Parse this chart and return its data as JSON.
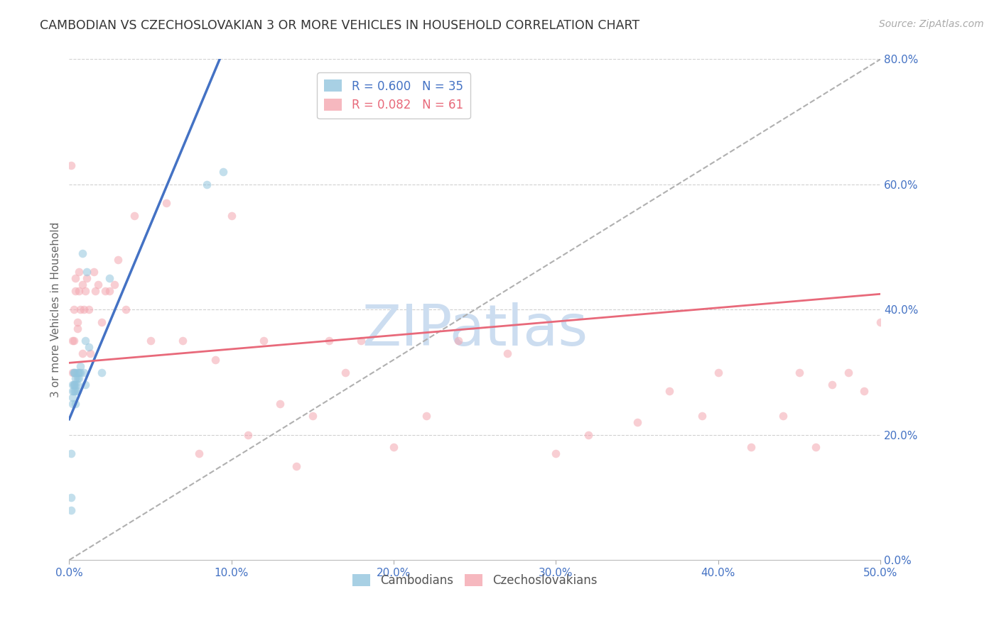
{
  "title": "CAMBODIAN VS CZECHOSLOVAKIAN 3 OR MORE VEHICLES IN HOUSEHOLD CORRELATION CHART",
  "source": "Source: ZipAtlas.com",
  "ylabel": "3 or more Vehicles in Household",
  "watermark": "ZIPatlas",
  "legend_r_entries": [
    {
      "label": "R = 0.600   N = 35",
      "color": "#6baed6"
    },
    {
      "label": "R = 0.082   N = 61",
      "color": "#e8697a"
    }
  ],
  "legend_bottom_labels": [
    "Cambodians",
    "Czechoslovakians"
  ],
  "xlim": [
    0.0,
    0.5
  ],
  "ylim": [
    0.0,
    0.8
  ],
  "right_yticks": [
    0.0,
    0.2,
    0.4,
    0.6,
    0.8
  ],
  "right_yticklabels": [
    "0.0%",
    "20.0%",
    "40.0%",
    "60.0%",
    "80.0%"
  ],
  "bottom_xticks": [
    0.0,
    0.1,
    0.2,
    0.3,
    0.4,
    0.5
  ],
  "bottom_xticklabels": [
    "0.0%",
    "10.0%",
    "20.0%",
    "30.0%",
    "40.0%",
    "50.0%"
  ],
  "cambodian_x": [
    0.001,
    0.001,
    0.001,
    0.002,
    0.002,
    0.002,
    0.002,
    0.003,
    0.003,
    0.003,
    0.003,
    0.003,
    0.004,
    0.004,
    0.004,
    0.004,
    0.004,
    0.005,
    0.005,
    0.005,
    0.005,
    0.006,
    0.006,
    0.007,
    0.007,
    0.008,
    0.009,
    0.01,
    0.01,
    0.011,
    0.012,
    0.02,
    0.025,
    0.085,
    0.095
  ],
  "cambodian_y": [
    0.08,
    0.1,
    0.17,
    0.25,
    0.26,
    0.27,
    0.28,
    0.27,
    0.28,
    0.28,
    0.3,
    0.3,
    0.25,
    0.27,
    0.28,
    0.29,
    0.3,
    0.27,
    0.28,
    0.29,
    0.3,
    0.29,
    0.3,
    0.3,
    0.31,
    0.49,
    0.3,
    0.28,
    0.35,
    0.46,
    0.34,
    0.3,
    0.45,
    0.6,
    0.62
  ],
  "czech_x": [
    0.001,
    0.002,
    0.002,
    0.003,
    0.003,
    0.004,
    0.004,
    0.005,
    0.005,
    0.006,
    0.006,
    0.007,
    0.008,
    0.008,
    0.009,
    0.01,
    0.011,
    0.012,
    0.013,
    0.015,
    0.016,
    0.018,
    0.02,
    0.022,
    0.025,
    0.028,
    0.03,
    0.035,
    0.04,
    0.05,
    0.06,
    0.07,
    0.08,
    0.09,
    0.1,
    0.11,
    0.12,
    0.13,
    0.15,
    0.16,
    0.17,
    0.18,
    0.2,
    0.22,
    0.24,
    0.27,
    0.3,
    0.32,
    0.35,
    0.37,
    0.39,
    0.4,
    0.42,
    0.44,
    0.45,
    0.46,
    0.47,
    0.48,
    0.49,
    0.5,
    0.14
  ],
  "czech_y": [
    0.63,
    0.3,
    0.35,
    0.35,
    0.4,
    0.43,
    0.45,
    0.37,
    0.38,
    0.43,
    0.46,
    0.4,
    0.33,
    0.44,
    0.4,
    0.43,
    0.45,
    0.4,
    0.33,
    0.46,
    0.43,
    0.44,
    0.38,
    0.43,
    0.43,
    0.44,
    0.48,
    0.4,
    0.55,
    0.35,
    0.57,
    0.35,
    0.17,
    0.32,
    0.55,
    0.2,
    0.35,
    0.25,
    0.23,
    0.35,
    0.3,
    0.35,
    0.18,
    0.23,
    0.35,
    0.33,
    0.17,
    0.2,
    0.22,
    0.27,
    0.23,
    0.3,
    0.18,
    0.23,
    0.3,
    0.18,
    0.28,
    0.3,
    0.27,
    0.38,
    0.15
  ],
  "blue_dot_color": "#92c5de",
  "pink_dot_color": "#f4a6b0",
  "blue_line_color": "#4472C4",
  "pink_line_color": "#e8697a",
  "diagonal_color": "#b0b0b0",
  "grid_color": "#d0d0d0",
  "tick_color": "#4472C4",
  "title_color": "#333333",
  "source_color": "#aaaaaa",
  "watermark_color": "#ccddf0",
  "dot_size": 70,
  "dot_alpha": 0.55,
  "blue_line_slope": 6.2,
  "blue_line_intercept": 0.225,
  "pink_line_slope": 0.22,
  "pink_line_intercept": 0.315
}
